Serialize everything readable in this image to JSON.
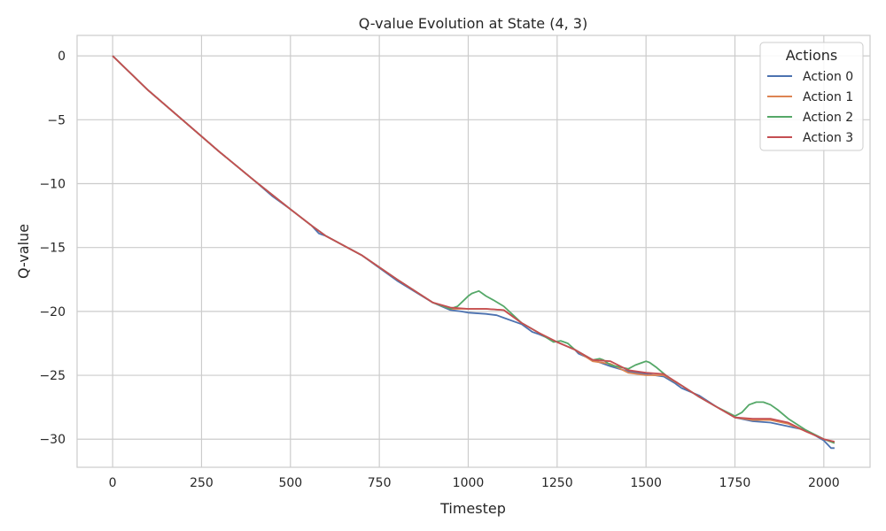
{
  "chart_data": {
    "type": "line",
    "title": "Q-value Evolution at State (4, 3)",
    "xlabel": "Timestep",
    "ylabel": "Q-value",
    "xlim": [
      -100,
      2130
    ],
    "ylim": [
      -32.2,
      1.6
    ],
    "xticks": [
      0,
      250,
      500,
      750,
      1000,
      1250,
      1500,
      1750,
      2000
    ],
    "yticks": [
      0,
      -5,
      -10,
      -15,
      -20,
      -25,
      -30
    ],
    "grid": true,
    "legend": {
      "title": "Actions",
      "placement": "top-right"
    },
    "series": [
      {
        "name": "Action 0",
        "color": "#4c72b0",
        "x": [
          0,
          100,
          200,
          300,
          400,
          450,
          500,
          560,
          580,
          600,
          700,
          800,
          900,
          950,
          980,
          1000,
          1050,
          1080,
          1100,
          1150,
          1180,
          1200,
          1250,
          1300,
          1310,
          1350,
          1400,
          1450,
          1500,
          1550,
          1580,
          1600,
          1650,
          1700,
          1750,
          1800,
          1850,
          1900,
          1950,
          2000,
          2020,
          2030
        ],
        "y": [
          0,
          -2.7,
          -5.1,
          -7.5,
          -9.8,
          -11.0,
          -12.0,
          -13.3,
          -13.9,
          -14.1,
          -15.6,
          -17.6,
          -19.3,
          -19.9,
          -20.0,
          -20.1,
          -20.2,
          -20.3,
          -20.5,
          -21.0,
          -21.6,
          -21.8,
          -22.4,
          -23.0,
          -23.3,
          -23.8,
          -24.3,
          -24.7,
          -24.9,
          -25.1,
          -25.6,
          -26.0,
          -26.6,
          -27.5,
          -28.3,
          -28.6,
          -28.7,
          -29.0,
          -29.3,
          -30.1,
          -30.7,
          -30.7
        ]
      },
      {
        "name": "Action 1",
        "color": "#dd8452",
        "x": [
          0,
          100,
          200,
          300,
          400,
          450,
          500,
          560,
          600,
          700,
          800,
          900,
          950,
          1000,
          1050,
          1100,
          1150,
          1200,
          1250,
          1300,
          1350,
          1400,
          1450,
          1500,
          1550,
          1600,
          1650,
          1700,
          1750,
          1800,
          1850,
          1900,
          1950,
          2000,
          2030
        ],
        "y": [
          0,
          -2.7,
          -5.1,
          -7.5,
          -9.8,
          -10.9,
          -12.0,
          -13.3,
          -14.1,
          -15.6,
          -17.5,
          -19.3,
          -19.8,
          -19.8,
          -19.8,
          -19.9,
          -20.9,
          -21.7,
          -22.4,
          -23.0,
          -23.9,
          -24.1,
          -24.8,
          -25.0,
          -25.0,
          -25.8,
          -26.7,
          -27.5,
          -28.3,
          -28.5,
          -28.5,
          -28.8,
          -29.4,
          -30.0,
          -30.3
        ]
      },
      {
        "name": "Action 2",
        "color": "#55a868",
        "x": [
          0,
          100,
          200,
          300,
          400,
          450,
          500,
          560,
          600,
          700,
          800,
          900,
          950,
          970,
          985,
          1000,
          1010,
          1020,
          1030,
          1040,
          1050,
          1070,
          1100,
          1150,
          1200,
          1240,
          1260,
          1280,
          1300,
          1350,
          1370,
          1380,
          1400,
          1450,
          1470,
          1490,
          1500,
          1510,
          1530,
          1560,
          1600,
          1650,
          1700,
          1750,
          1770,
          1790,
          1810,
          1830,
          1850,
          1870,
          1900,
          1950,
          2000,
          2030
        ],
        "y": [
          0,
          -2.7,
          -5.1,
          -7.5,
          -9.8,
          -10.9,
          -12.0,
          -13.3,
          -14.1,
          -15.6,
          -17.5,
          -19.3,
          -19.8,
          -19.6,
          -19.2,
          -18.8,
          -18.6,
          -18.5,
          -18.4,
          -18.6,
          -18.8,
          -19.1,
          -19.6,
          -20.9,
          -21.7,
          -22.4,
          -22.3,
          -22.5,
          -23.0,
          -23.8,
          -23.7,
          -23.8,
          -24.2,
          -24.5,
          -24.2,
          -24.0,
          -23.9,
          -24.0,
          -24.4,
          -25.1,
          -25.8,
          -26.7,
          -27.5,
          -28.2,
          -27.9,
          -27.3,
          -27.1,
          -27.1,
          -27.3,
          -27.7,
          -28.4,
          -29.3,
          -30.0,
          -30.3
        ]
      },
      {
        "name": "Action 3",
        "color": "#c44e52",
        "x": [
          0,
          100,
          200,
          300,
          400,
          450,
          500,
          560,
          600,
          700,
          800,
          900,
          950,
          1000,
          1050,
          1100,
          1150,
          1200,
          1250,
          1300,
          1350,
          1400,
          1450,
          1500,
          1550,
          1600,
          1650,
          1700,
          1750,
          1800,
          1850,
          1900,
          1950,
          2000,
          2030
        ],
        "y": [
          0,
          -2.7,
          -5.1,
          -7.5,
          -9.8,
          -10.9,
          -12.0,
          -13.3,
          -14.1,
          -15.6,
          -17.5,
          -19.3,
          -19.7,
          -19.8,
          -19.8,
          -19.9,
          -20.9,
          -21.7,
          -22.4,
          -23.0,
          -23.8,
          -23.9,
          -24.6,
          -24.8,
          -24.9,
          -25.8,
          -26.7,
          -27.5,
          -28.3,
          -28.4,
          -28.4,
          -28.7,
          -29.4,
          -30.0,
          -30.2
        ]
      }
    ]
  }
}
